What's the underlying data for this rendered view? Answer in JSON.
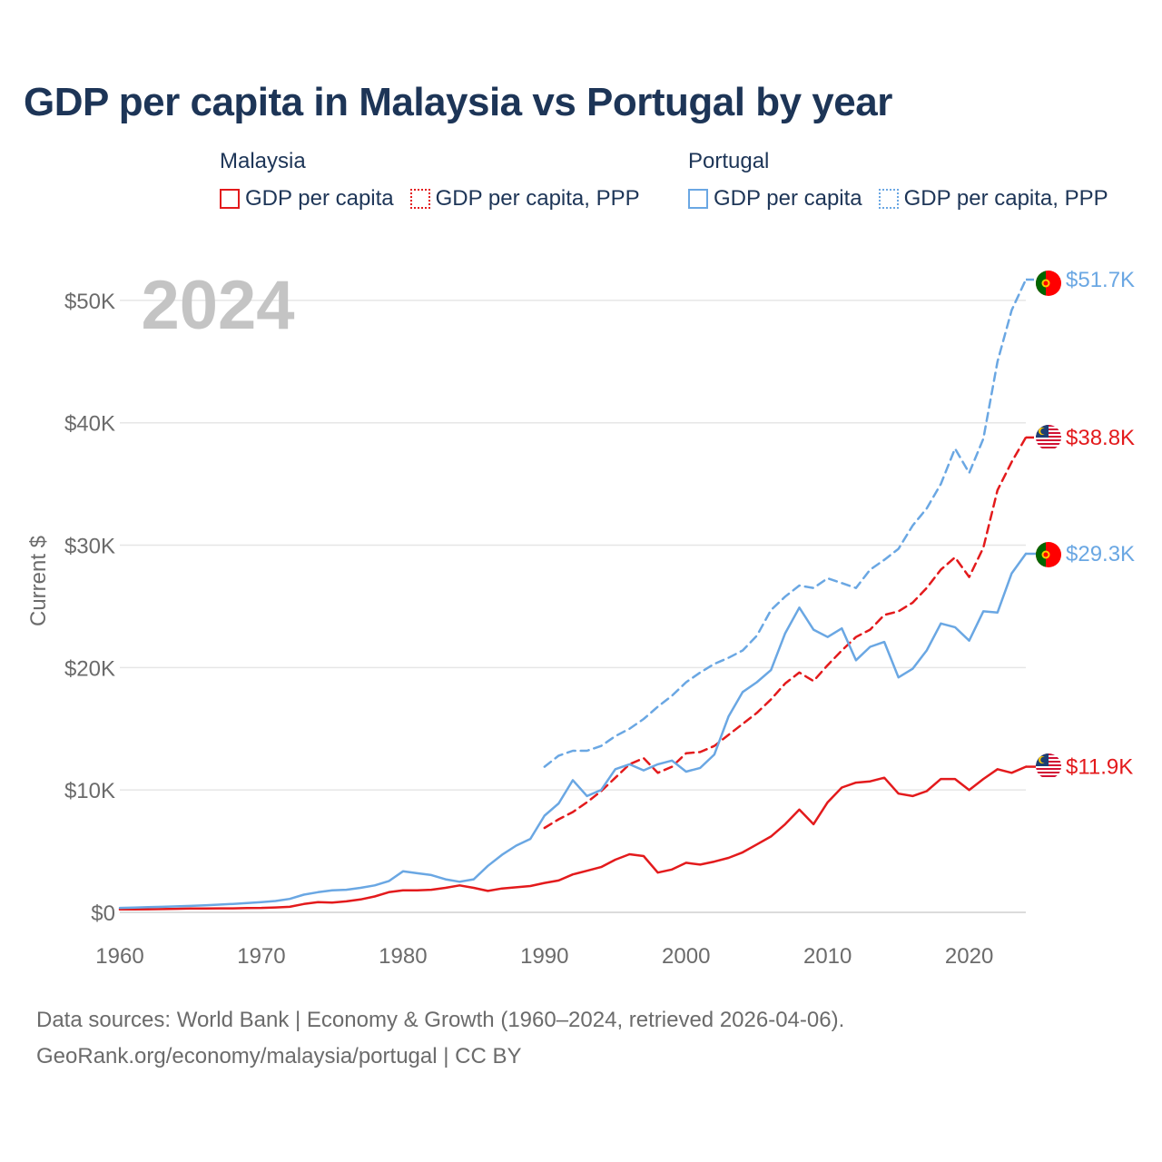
{
  "title": "GDP per capita in Malaysia vs Portugal by year",
  "legend": {
    "groups": [
      {
        "name": "Malaysia",
        "items": [
          {
            "label": "GDP per capita",
            "style": "solid",
            "color": "#e31a1c"
          },
          {
            "label": "GDP per capita, PPP",
            "style": "dotted",
            "color": "#e31a1c"
          }
        ]
      },
      {
        "name": "Portugal",
        "items": [
          {
            "label": "GDP per capita",
            "style": "solid",
            "color": "#6aa7e3"
          },
          {
            "label": "GDP per capita, PPP",
            "style": "dotted",
            "color": "#6aa7e3"
          }
        ]
      }
    ]
  },
  "year_watermark": "2024",
  "footer": {
    "line1": "Data sources: World Bank | Economy & Growth (1960–2024, retrieved 2026-04-06).",
    "line2": "GeoRank.org/economy/malaysia/portugal | CC BY"
  },
  "chart_data": {
    "type": "line",
    "title": "GDP per capita in Malaysia vs Portugal by year",
    "xlabel": "",
    "ylabel": "Current $",
    "xlim": [
      1960,
      2024
    ],
    "ylim": [
      0,
      54000
    ],
    "xticks": [
      1960,
      1970,
      1980,
      1990,
      2000,
      2010,
      2020
    ],
    "xtick_labels": [
      "1960",
      "1970",
      "1980",
      "1990",
      "2000",
      "2010",
      "2020"
    ],
    "yticks": [
      0,
      10000,
      20000,
      30000,
      40000,
      50000
    ],
    "ytick_labels": [
      "$0",
      "$10K",
      "$20K",
      "$30K",
      "$40K",
      "$50K"
    ],
    "grid": true,
    "series": [
      {
        "name": "Malaysia GDP per capita",
        "country": "Malaysia",
        "color": "#e31a1c",
        "dash": "solid",
        "end_label": "$11.9K",
        "x": [
          1960,
          1961,
          1962,
          1963,
          1964,
          1965,
          1966,
          1967,
          1968,
          1969,
          1970,
          1971,
          1972,
          1973,
          1974,
          1975,
          1976,
          1977,
          1978,
          1979,
          1980,
          1981,
          1982,
          1983,
          1984,
          1985,
          1986,
          1987,
          1988,
          1989,
          1990,
          1991,
          1992,
          1993,
          1994,
          1995,
          1996,
          1997,
          1998,
          1999,
          2000,
          2001,
          2002,
          2003,
          2004,
          2005,
          2006,
          2007,
          2008,
          2009,
          2010,
          2011,
          2012,
          2013,
          2014,
          2015,
          2016,
          2017,
          2018,
          2019,
          2020,
          2021,
          2022,
          2023,
          2024
        ],
        "values": [
          235,
          240,
          250,
          265,
          290,
          310,
          320,
          325,
          330,
          355,
          360,
          400,
          450,
          680,
          830,
          800,
          900,
          1050,
          1300,
          1650,
          1800,
          1800,
          1850,
          2000,
          2200,
          2000,
          1750,
          1950,
          2050,
          2150,
          2400,
          2600,
          3100,
          3400,
          3700,
          4300,
          4750,
          4600,
          3250,
          3500,
          4050,
          3900,
          4150,
          4450,
          4900,
          5550,
          6200,
          7200,
          8400,
          7200,
          9000,
          10200,
          10600,
          10700,
          11000,
          9700,
          9500,
          9900,
          10900,
          10900,
          10000,
          10900,
          11700,
          11400,
          11900
        ]
      },
      {
        "name": "Malaysia GDP per capita, PPP",
        "country": "Malaysia",
        "color": "#e31a1c",
        "dash": "dashed",
        "end_label": "$38.8K",
        "x": [
          1990,
          1991,
          1992,
          1993,
          1994,
          1995,
          1996,
          1997,
          1998,
          1999,
          2000,
          2001,
          2002,
          2003,
          2004,
          2005,
          2006,
          2007,
          2008,
          2009,
          2010,
          2011,
          2012,
          2013,
          2014,
          2015,
          2016,
          2017,
          2018,
          2019,
          2020,
          2021,
          2022,
          2023,
          2024
        ],
        "values": [
          6900,
          7600,
          8200,
          9000,
          9900,
          11000,
          12100,
          12600,
          11400,
          11900,
          13000,
          13100,
          13600,
          14500,
          15400,
          16300,
          17400,
          18700,
          19600,
          18900,
          20200,
          21400,
          22500,
          23100,
          24300,
          24600,
          25300,
          26500,
          28000,
          29000,
          27400,
          29800,
          34500,
          36800,
          38800
        ]
      },
      {
        "name": "Portugal GDP per capita",
        "country": "Portugal",
        "color": "#6aa7e3",
        "dash": "solid",
        "end_label": "$29.3K",
        "x": [
          1960,
          1961,
          1962,
          1963,
          1964,
          1965,
          1966,
          1967,
          1968,
          1969,
          1970,
          1971,
          1972,
          1973,
          1974,
          1975,
          1976,
          1977,
          1978,
          1979,
          1980,
          1981,
          1982,
          1983,
          1984,
          1985,
          1986,
          1987,
          1988,
          1989,
          1990,
          1991,
          1992,
          1993,
          1994,
          1995,
          1996,
          1997,
          1998,
          1999,
          2000,
          2001,
          2002,
          2003,
          2004,
          2005,
          2006,
          2007,
          2008,
          2009,
          2010,
          2011,
          2012,
          2013,
          2014,
          2015,
          2016,
          2017,
          2018,
          2019,
          2020,
          2021,
          2022,
          2023,
          2024
        ],
        "values": [
          360,
          390,
          420,
          450,
          490,
          530,
          580,
          630,
          690,
          760,
          830,
          930,
          1100,
          1450,
          1650,
          1800,
          1850,
          2000,
          2200,
          2550,
          3350,
          3200,
          3050,
          2700,
          2500,
          2700,
          3800,
          4700,
          5450,
          6000,
          7900,
          8900,
          10800,
          9500,
          10000,
          11700,
          12100,
          11600,
          12100,
          12400,
          11500,
          11800,
          12900,
          16000,
          18000,
          18800,
          19800,
          22800,
          24900,
          23100,
          22500,
          23200,
          20600,
          21700,
          22100,
          19200,
          19900,
          21400,
          23600,
          23300,
          22200,
          24600,
          24500,
          27700,
          29300
        ]
      },
      {
        "name": "Portugal GDP per capita, PPP",
        "country": "Portugal",
        "color": "#6aa7e3",
        "dash": "dashed",
        "end_label": "$51.7K",
        "x": [
          1990,
          1991,
          1992,
          1993,
          1994,
          1995,
          1996,
          1997,
          1998,
          1999,
          2000,
          2001,
          2002,
          2003,
          2004,
          2005,
          2006,
          2007,
          2008,
          2009,
          2010,
          2011,
          2012,
          2013,
          2014,
          2015,
          2016,
          2017,
          2018,
          2019,
          2020,
          2021,
          2022,
          2023,
          2024
        ],
        "values": [
          11900,
          12800,
          13200,
          13200,
          13600,
          14400,
          15000,
          15800,
          16800,
          17700,
          18800,
          19600,
          20300,
          20800,
          21400,
          22600,
          24700,
          25800,
          26700,
          26500,
          27300,
          26900,
          26500,
          28000,
          28800,
          29700,
          31600,
          33000,
          35000,
          37900,
          35900,
          38700,
          45000,
          49200,
          51700
        ]
      }
    ]
  }
}
